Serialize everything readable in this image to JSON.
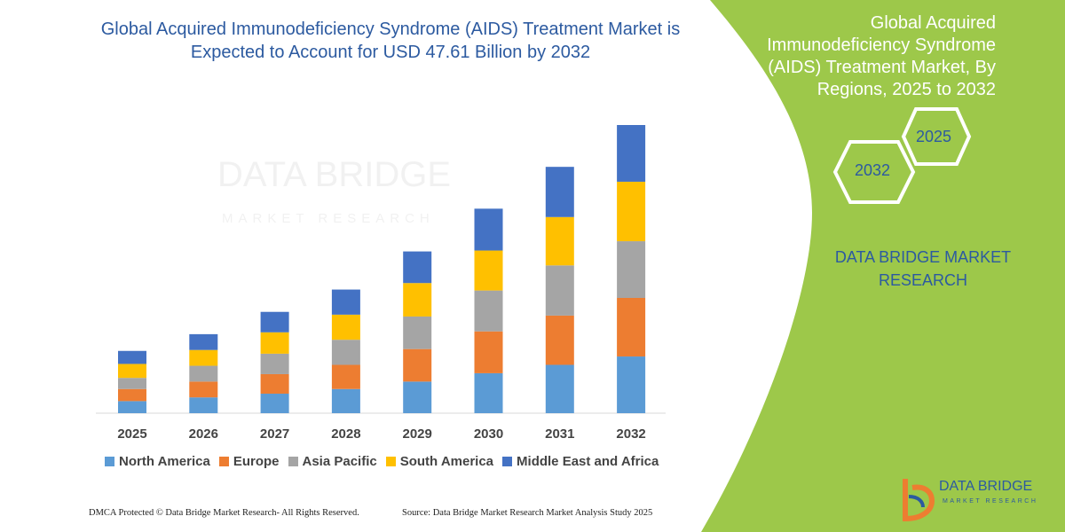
{
  "title": "Global Acquired Immunodeficiency Syndrome (AIDS) Treatment Market is Expected to Account for USD 47.61 Billion by 2032",
  "panel": {
    "title": "Global Acquired Immunodeficiency Syndrome (AIDS) Treatment Market, By Regions, 2025 to 2032",
    "hex_top": "2025",
    "hex_bottom": "2032",
    "brand": "DATA BRIDGE MARKET RESEARCH",
    "bg_color": "#9dc84a"
  },
  "watermark": {
    "name": "DATA BRIDGE",
    "sub": "MARKET RESEARCH"
  },
  "logo": {
    "name": "DATA BRIDGE",
    "sub": "MARKET RESEARCH"
  },
  "footer": {
    "left": "DMCA Protected © Data Bridge Market Research- All Rights Reserved.",
    "right": "Source: Data Bridge Market Research Market Analysis Study 2025"
  },
  "chart_data": {
    "type": "bar",
    "stacked": true,
    "categories": [
      "2025",
      "2026",
      "2027",
      "2028",
      "2029",
      "2030",
      "2031",
      "2032"
    ],
    "series": [
      {
        "name": "North America",
        "color": "#5b9bd5",
        "values": [
          13,
          17,
          21,
          26,
          34,
          43,
          52,
          61
        ]
      },
      {
        "name": "Europe",
        "color": "#ed7d31",
        "values": [
          13,
          17,
          21,
          26,
          35,
          45,
          53,
          63
        ]
      },
      {
        "name": "Asia Pacific",
        "color": "#a5a5a5",
        "values": [
          12,
          17,
          22,
          27,
          35,
          44,
          54,
          61
        ]
      },
      {
        "name": "South America",
        "color": "#ffc000",
        "values": [
          15,
          17,
          23,
          27,
          36,
          43,
          52,
          64
        ]
      },
      {
        "name": "Middle East and Africa",
        "color": "#4472c4",
        "values": [
          14,
          17,
          22,
          27,
          34,
          45,
          54,
          61
        ]
      }
    ],
    "ylim": [
      0,
      310
    ],
    "legend_position": "bottom",
    "grid": false
  }
}
